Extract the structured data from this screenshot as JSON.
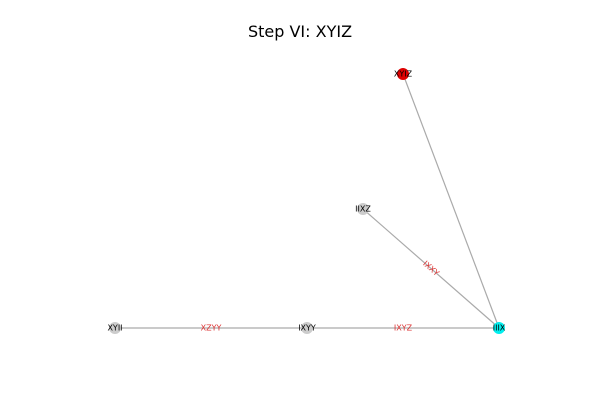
{
  "title": "Step VI: XYIZ",
  "colors": {
    "edge": "#aaaaaa",
    "edge_label": "#dd3333",
    "node_default": "#cccccc",
    "node_highlight": "#dd0000",
    "node_current": "#00eeee"
  },
  "nodes": [
    {
      "id": "XYIZ",
      "label": "XYIZ",
      "status": "highlight"
    },
    {
      "id": "IIXZ",
      "label": "IIXZ",
      "status": "default"
    },
    {
      "id": "XYII",
      "label": "XYII",
      "status": "default"
    },
    {
      "id": "IXYY",
      "label": "IXYY",
      "status": "default"
    },
    {
      "id": "IIIX",
      "label": "IIIX",
      "status": "current"
    }
  ],
  "edges": [
    {
      "source": "XYII",
      "target": "IXYY",
      "label": "XZYY"
    },
    {
      "source": "IXYY",
      "target": "IIIX",
      "label": "IXYZ"
    },
    {
      "source": "IIXZ",
      "target": "IIIX",
      "label": "IXXY"
    },
    {
      "source": "XYIZ",
      "target": "IIIX",
      "label": ""
    }
  ]
}
